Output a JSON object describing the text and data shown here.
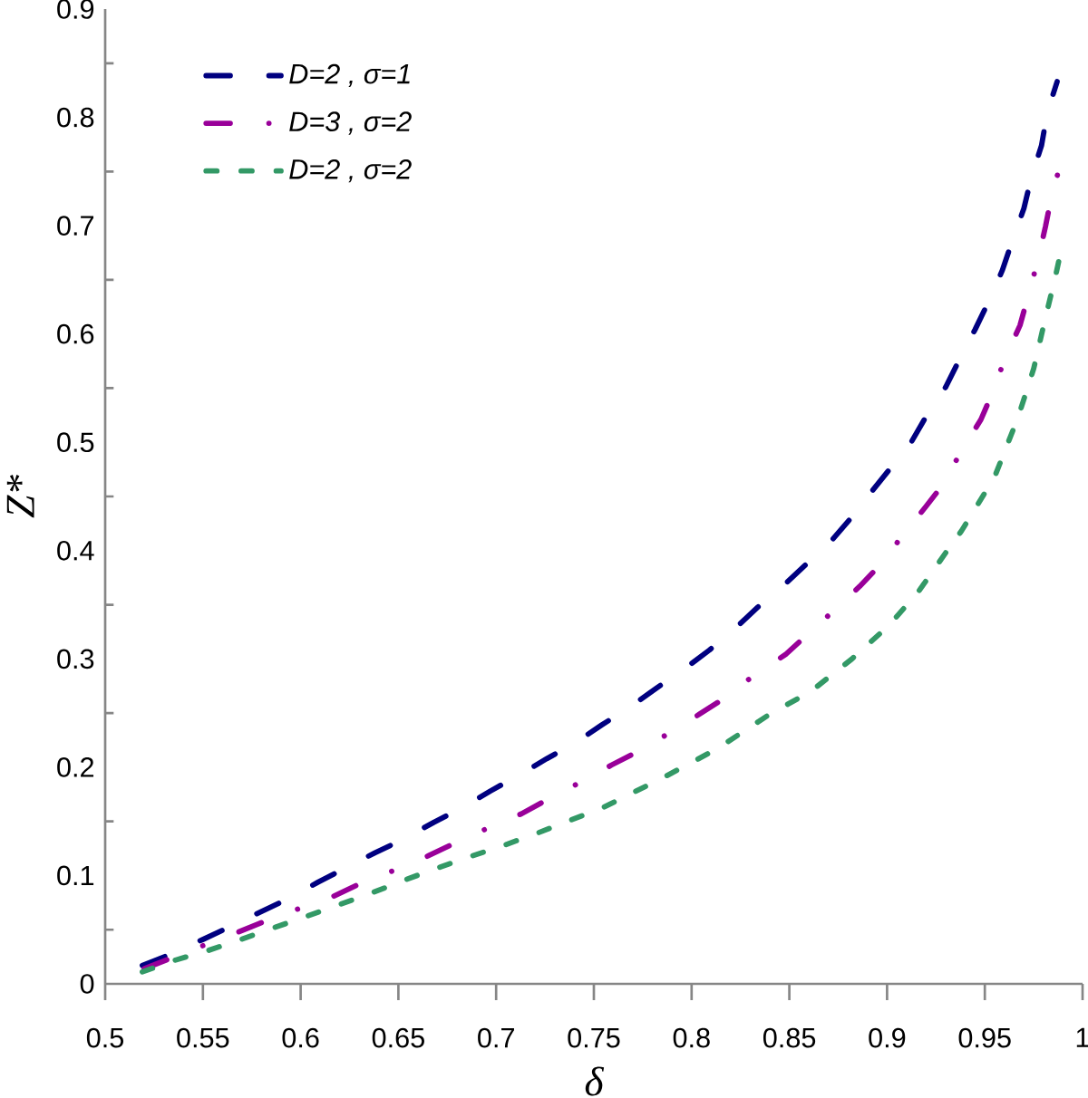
{
  "chart_data": {
    "type": "line",
    "xlabel": "δ",
    "ylabel": "Z*",
    "series": [
      {
        "name": "D=2 , σ=1",
        "color": "#000080",
        "line_style": "long dashed",
        "x": [
          0.519,
          0.533,
          0.55,
          0.563,
          0.579,
          0.593,
          0.609,
          0.623,
          0.638,
          0.652,
          0.668,
          0.682,
          0.697,
          0.711,
          0.726,
          0.74,
          0.754,
          0.768,
          0.782,
          0.795,
          0.809,
          0.821,
          0.834,
          0.846,
          0.859,
          0.87,
          0.882,
          0.891,
          0.903,
          0.912,
          0.921,
          0.93,
          0.938,
          0.945,
          0.953,
          0.959,
          0.965,
          0.97,
          0.974,
          0.979,
          0.982,
          0.987
        ],
        "values": [
          0.017,
          0.027,
          0.041,
          0.052,
          0.066,
          0.078,
          0.094,
          0.107,
          0.121,
          0.133,
          0.149,
          0.162,
          0.178,
          0.192,
          0.208,
          0.222,
          0.239,
          0.255,
          0.273,
          0.289,
          0.308,
          0.326,
          0.348,
          0.366,
          0.388,
          0.406,
          0.431,
          0.452,
          0.479,
          0.499,
          0.527,
          0.551,
          0.58,
          0.604,
          0.634,
          0.659,
          0.691,
          0.716,
          0.746,
          0.774,
          0.805,
          0.833
        ]
      },
      {
        "name": "D=3 , σ=2",
        "color": "#990099",
        "line_style": "dashdot",
        "x": [
          0.52,
          0.534,
          0.551,
          0.567,
          0.582,
          0.6,
          0.617,
          0.631,
          0.648,
          0.665,
          0.679,
          0.696,
          0.713,
          0.724,
          0.743,
          0.759,
          0.772,
          0.789,
          0.804,
          0.817,
          0.832,
          0.848,
          0.859,
          0.873,
          0.886,
          0.896,
          0.908,
          0.92,
          0.929,
          0.938,
          0.948,
          0.954,
          0.96,
          0.968,
          0.972,
          0.977,
          0.981,
          0.984,
          0.989
        ],
        "values": [
          0.014,
          0.024,
          0.036,
          0.047,
          0.058,
          0.07,
          0.081,
          0.093,
          0.105,
          0.118,
          0.13,
          0.144,
          0.157,
          0.168,
          0.186,
          0.202,
          0.214,
          0.232,
          0.249,
          0.264,
          0.285,
          0.304,
          0.322,
          0.345,
          0.367,
          0.386,
          0.414,
          0.441,
          0.462,
          0.492,
          0.521,
          0.546,
          0.576,
          0.608,
          0.634,
          0.667,
          0.699,
          0.726,
          0.759
        ]
      },
      {
        "name": "D=2 , σ=2",
        "color": "#339966",
        "line_style": "dashed",
        "x": [
          0.519,
          0.536,
          0.553,
          0.568,
          0.585,
          0.601,
          0.618,
          0.635,
          0.652,
          0.667,
          0.684,
          0.701,
          0.718,
          0.755,
          0.785,
          0.813,
          0.84,
          0.861,
          0.882,
          0.901,
          0.916,
          0.93,
          0.938,
          0.955,
          0.967,
          0.975,
          0.981,
          0.986,
          0.989
        ],
        "values": [
          0.011,
          0.022,
          0.031,
          0.04,
          0.051,
          0.061,
          0.072,
          0.083,
          0.095,
          0.105,
          0.116,
          0.126,
          0.137,
          0.163,
          0.19,
          0.217,
          0.249,
          0.27,
          0.3,
          0.331,
          0.362,
          0.398,
          0.418,
          0.468,
          0.523,
          0.568,
          0.615,
          0.652,
          0.677
        ]
      }
    ],
    "xlim": [
      0.5,
      1
    ],
    "ylim": [
      0,
      0.9
    ],
    "xticks": [
      0.5,
      0.55,
      0.6,
      0.65,
      0.7,
      0.75,
      0.8,
      0.85,
      0.9,
      0.95,
      1
    ],
    "yticks": [
      0,
      0.1,
      0.2,
      0.3,
      0.4,
      0.5,
      0.6,
      0.7,
      0.8,
      0.9,
      {
        "value": 0.05,
        "label": null
      },
      {
        "value": 0.15,
        "label": null
      },
      {
        "value": 0.25,
        "label": null
      },
      {
        "value": 0.35,
        "label": null
      },
      {
        "value": 0.45,
        "label": null
      },
      {
        "value": 0.55,
        "label": null
      },
      {
        "value": 0.65,
        "label": null
      },
      {
        "value": 0.75,
        "label": null
      },
      {
        "value": 0.85,
        "label": null
      }
    ],
    "legend": "top left"
  }
}
